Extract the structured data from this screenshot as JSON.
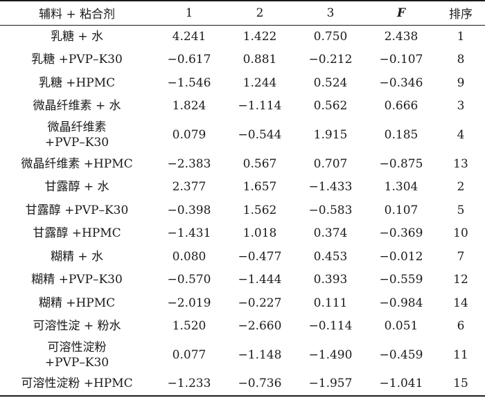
{
  "headers": [
    "辅料 + 粘合剂",
    "1",
    "2",
    "3",
    "F",
    "排序"
  ],
  "rows": [
    {
      "name1": "乳糖 + 水",
      "name2": "",
      "v1": "4.241",
      "v2": "1.422",
      "v3": "0.750",
      "f": "2.438",
      "rank": "1"
    },
    {
      "name1": "乳糖 +PVP–K30",
      "name2": "",
      "v1": "−0.617",
      "v2": "0.881",
      "v3": "−0.212",
      "f": "−0.107",
      "rank": "8"
    },
    {
      "name1": "乳糖 +HPMC",
      "name2": "",
      "v1": "−1.546",
      "v2": "1.244",
      "v3": "0.524",
      "f": "−0.346",
      "rank": "9"
    },
    {
      "name1": "微晶纤维素 + 水",
      "name2": "",
      "v1": "1.824",
      "v2": "−1.114",
      "v3": "0.562",
      "f": "0.666",
      "rank": "3"
    },
    {
      "name1": "微晶纤维素",
      "name2": "+PVP–K30",
      "v1": "0.079",
      "v2": "−0.544",
      "v3": "1.915",
      "f": "0.185",
      "rank": "4"
    },
    {
      "name1": "微晶纤维素 +HPMC",
      "name2": "",
      "v1": "−2.383",
      "v2": "0.567",
      "v3": "0.707",
      "f": "−0.875",
      "rank": "13"
    },
    {
      "name1": "甘露醇 + 水",
      "name2": "",
      "v1": "2.377",
      "v2": "1.657",
      "v3": "−1.433",
      "f": "1.304",
      "rank": "2"
    },
    {
      "name1": "甘露醇 +PVP–K30",
      "name2": "",
      "v1": "−0.398",
      "v2": "1.562",
      "v3": "−0.583",
      "f": "0.107",
      "rank": "5"
    },
    {
      "name1": "甘露醇 +HPMC",
      "name2": "",
      "v1": "−1.431",
      "v2": "1.018",
      "v3": "0.374",
      "f": "−0.369",
      "rank": "10"
    },
    {
      "name1": "糊精 + 水",
      "name2": "",
      "v1": "0.080",
      "v2": "−0.477",
      "v3": "0.453",
      "f": "−0.012",
      "rank": "7"
    },
    {
      "name1": "糊精 +PVP–K30",
      "name2": "",
      "v1": "−0.570",
      "v2": "−1.444",
      "v3": "0.393",
      "f": "−0.559",
      "rank": "12"
    },
    {
      "name1": "糊精 +HPMC",
      "name2": "",
      "v1": "−2.019",
      "v2": "−0.227",
      "v3": "0.111",
      "f": "−0.984",
      "rank": "14"
    },
    {
      "name1": "可溶性淀 + 粉水",
      "name2": "",
      "v1": "1.520",
      "v2": "−2.660",
      "v3": "−0.114",
      "f": "0.051",
      "rank": "6"
    },
    {
      "name1": "可溶性淀粉",
      "name2": "+PVP–K30",
      "v1": "0.077",
      "v2": "−1.148",
      "v3": "−1.490",
      "f": "−0.459",
      "rank": "11"
    },
    {
      "name1": "可溶性淀粉 +HPMC",
      "name2": "",
      "v1": "−1.233",
      "v2": "−0.736",
      "v3": "−1.957",
      "f": "−1.041",
      "rank": "15"
    }
  ]
}
